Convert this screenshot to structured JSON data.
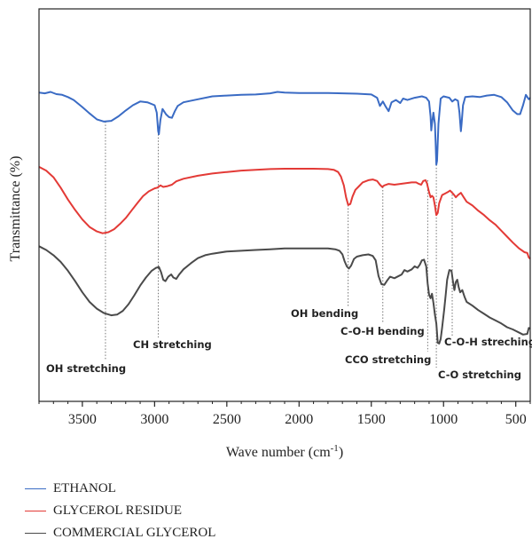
{
  "chart_data": {
    "type": "line",
    "ylabel": "Transmittance (%)",
    "xlabel_main": "Wave number (cm",
    "xlabel_sup": "-1",
    "xlabel_end": ")",
    "xlim": [
      3800,
      400
    ],
    "x_reversed": true,
    "ylim": [
      0,
      100
    ],
    "yticks_shown": false,
    "xticks": [
      {
        "value": 3500,
        "label": "3500"
      },
      {
        "value": 3000,
        "label": "3000"
      },
      {
        "value": 2500,
        "label": "2500"
      },
      {
        "value": 2000,
        "label": "2000"
      },
      {
        "value": 1500,
        "label": "1500"
      },
      {
        "value": 1000,
        "label": "1000"
      },
      {
        "value": 500,
        "label": "500"
      }
    ],
    "legend_placement": "bottom-left",
    "series": [
      {
        "name": "ETHANOL",
        "color": "#3a6bc4",
        "points": [
          [
            3800,
            78.4
          ],
          [
            3760,
            78.2
          ],
          [
            3720,
            78.6
          ],
          [
            3680,
            78.0
          ],
          [
            3640,
            77.8
          ],
          [
            3600,
            77.2
          ],
          [
            3560,
            76.4
          ],
          [
            3500,
            74.5
          ],
          [
            3450,
            72.8
          ],
          [
            3400,
            71.2
          ],
          [
            3350,
            70.6
          ],
          [
            3300,
            70.8
          ],
          [
            3250,
            72.0
          ],
          [
            3200,
            73.6
          ],
          [
            3150,
            75.0
          ],
          [
            3100,
            76.0
          ],
          [
            3050,
            75.8
          ],
          [
            3000,
            75.0
          ],
          [
            2985,
            73.0
          ],
          [
            2975,
            68.0
          ],
          [
            2970,
            67.2
          ],
          [
            2960,
            71.0
          ],
          [
            2945,
            74.0
          ],
          [
            2920,
            72.5
          ],
          [
            2900,
            71.8
          ],
          [
            2880,
            71.6
          ],
          [
            2860,
            73.4
          ],
          [
            2840,
            74.8
          ],
          [
            2800,
            75.8
          ],
          [
            2700,
            76.6
          ],
          [
            2600,
            77.4
          ],
          [
            2500,
            77.6
          ],
          [
            2400,
            77.8
          ],
          [
            2300,
            77.9
          ],
          [
            2200,
            78.2
          ],
          [
            2150,
            78.6
          ],
          [
            2100,
            78.4
          ],
          [
            2000,
            78.3
          ],
          [
            1900,
            78.3
          ],
          [
            1800,
            78.3
          ],
          [
            1700,
            78.2
          ],
          [
            1600,
            78.1
          ],
          [
            1500,
            77.9
          ],
          [
            1460,
            77.0
          ],
          [
            1440,
            74.8
          ],
          [
            1420,
            76.0
          ],
          [
            1400,
            74.6
          ],
          [
            1380,
            73.4
          ],
          [
            1360,
            75.8
          ],
          [
            1330,
            76.4
          ],
          [
            1300,
            75.6
          ],
          [
            1280,
            76.8
          ],
          [
            1250,
            76.4
          ],
          [
            1200,
            77.0
          ],
          [
            1150,
            77.4
          ],
          [
            1120,
            77.0
          ],
          [
            1100,
            76.0
          ],
          [
            1090,
            72.0
          ],
          [
            1085,
            68.2
          ],
          [
            1080,
            70.0
          ],
          [
            1070,
            73.0
          ],
          [
            1060,
            70.0
          ],
          [
            1055,
            65.0
          ],
          [
            1050,
            59.0
          ],
          [
            1045,
            60.0
          ],
          [
            1035,
            70.0
          ],
          [
            1020,
            76.8
          ],
          [
            1000,
            77.4
          ],
          [
            960,
            77.0
          ],
          [
            940,
            76.0
          ],
          [
            920,
            76.6
          ],
          [
            900,
            76.2
          ],
          [
            890,
            73.0
          ],
          [
            880,
            68.0
          ],
          [
            875,
            70.0
          ],
          [
            865,
            75.0
          ],
          [
            850,
            77.2
          ],
          [
            800,
            77.4
          ],
          [
            750,
            77.2
          ],
          [
            700,
            77.6
          ],
          [
            650,
            77.8
          ],
          [
            600,
            77.2
          ],
          [
            560,
            75.8
          ],
          [
            520,
            73.6
          ],
          [
            490,
            72.6
          ],
          [
            470,
            72.6
          ],
          [
            450,
            75.0
          ],
          [
            430,
            77.8
          ],
          [
            410,
            76.6
          ],
          [
            400,
            77.0
          ]
        ]
      },
      {
        "name": "GLYCEROL RESIDUE",
        "color": "#e33a36",
        "points": [
          [
            3800,
            58.4
          ],
          [
            3750,
            57.4
          ],
          [
            3700,
            55.6
          ],
          [
            3650,
            52.8
          ],
          [
            3600,
            49.6
          ],
          [
            3550,
            46.8
          ],
          [
            3500,
            44.2
          ],
          [
            3450,
            42.2
          ],
          [
            3400,
            41.0
          ],
          [
            3360,
            40.5
          ],
          [
            3320,
            40.8
          ],
          [
            3280,
            41.6
          ],
          [
            3240,
            43.0
          ],
          [
            3200,
            44.6
          ],
          [
            3160,
            46.6
          ],
          [
            3120,
            48.6
          ],
          [
            3080,
            50.5
          ],
          [
            3040,
            51.8
          ],
          [
            3000,
            52.6
          ],
          [
            2980,
            52.8
          ],
          [
            2960,
            53.4
          ],
          [
            2940,
            53.0
          ],
          [
            2910,
            53.2
          ],
          [
            2880,
            53.6
          ],
          [
            2850,
            54.5
          ],
          [
            2800,
            55.2
          ],
          [
            2700,
            56.0
          ],
          [
            2600,
            56.6
          ],
          [
            2500,
            57.0
          ],
          [
            2400,
            57.4
          ],
          [
            2300,
            57.6
          ],
          [
            2200,
            57.8
          ],
          [
            2100,
            57.9
          ],
          [
            2000,
            57.9
          ],
          [
            1900,
            57.9
          ],
          [
            1800,
            57.8
          ],
          [
            1760,
            57.6
          ],
          [
            1730,
            57.0
          ],
          [
            1710,
            55.8
          ],
          [
            1690,
            53.4
          ],
          [
            1675,
            50.2
          ],
          [
            1660,
            48.1
          ],
          [
            1645,
            48.4
          ],
          [
            1630,
            50.4
          ],
          [
            1610,
            52.2
          ],
          [
            1590,
            53.0
          ],
          [
            1560,
            54.2
          ],
          [
            1520,
            54.8
          ],
          [
            1490,
            55.0
          ],
          [
            1460,
            54.6
          ],
          [
            1440,
            53.6
          ],
          [
            1425,
            53.0
          ],
          [
            1410,
            53.4
          ],
          [
            1380,
            53.8
          ],
          [
            1340,
            53.6
          ],
          [
            1300,
            53.8
          ],
          [
            1260,
            54.0
          ],
          [
            1220,
            54.2
          ],
          [
            1190,
            54.2
          ],
          [
            1170,
            53.8
          ],
          [
            1155,
            53.6
          ],
          [
            1140,
            54.6
          ],
          [
            1125,
            54.8
          ],
          [
            1115,
            54.0
          ],
          [
            1100,
            51.6
          ],
          [
            1090,
            50.2
          ],
          [
            1080,
            50.6
          ],
          [
            1070,
            50.2
          ],
          [
            1060,
            48.0
          ],
          [
            1050,
            45.4
          ],
          [
            1040,
            46.0
          ],
          [
            1030,
            48.6
          ],
          [
            1010,
            50.8
          ],
          [
            990,
            51.2
          ],
          [
            970,
            51.6
          ],
          [
            955,
            52.0
          ],
          [
            945,
            51.6
          ],
          [
            930,
            51.0
          ],
          [
            915,
            50.2
          ],
          [
            900,
            50.8
          ],
          [
            880,
            51.4
          ],
          [
            860,
            50.2
          ],
          [
            840,
            49.0
          ],
          [
            800,
            48.0
          ],
          [
            760,
            46.6
          ],
          [
            720,
            45.4
          ],
          [
            680,
            44.0
          ],
          [
            640,
            42.8
          ],
          [
            600,
            41.2
          ],
          [
            560,
            39.6
          ],
          [
            520,
            38.0
          ],
          [
            480,
            36.5
          ],
          [
            440,
            35.4
          ],
          [
            420,
            35.2
          ],
          [
            410,
            34.0
          ],
          [
            400,
            33.6
          ]
        ]
      },
      {
        "name": "COMMERCIAL GLYCEROL",
        "color": "#4a4a4a",
        "points": [
          [
            3800,
            37.0
          ],
          [
            3750,
            36.0
          ],
          [
            3700,
            34.6
          ],
          [
            3650,
            32.8
          ],
          [
            3600,
            30.4
          ],
          [
            3550,
            27.6
          ],
          [
            3500,
            24.6
          ],
          [
            3450,
            22.0
          ],
          [
            3400,
            20.2
          ],
          [
            3350,
            19.0
          ],
          [
            3300,
            18.4
          ],
          [
            3260,
            18.6
          ],
          [
            3220,
            19.6
          ],
          [
            3180,
            21.4
          ],
          [
            3140,
            23.8
          ],
          [
            3100,
            26.4
          ],
          [
            3060,
            28.6
          ],
          [
            3020,
            30.4
          ],
          [
            2990,
            31.2
          ],
          [
            2970,
            31.4
          ],
          [
            2955,
            30.0
          ],
          [
            2940,
            28.0
          ],
          [
            2925,
            27.6
          ],
          [
            2905,
            28.8
          ],
          [
            2885,
            29.4
          ],
          [
            2870,
            28.6
          ],
          [
            2850,
            28.2
          ],
          [
            2830,
            29.4
          ],
          [
            2800,
            30.8
          ],
          [
            2750,
            32.4
          ],
          [
            2700,
            33.8
          ],
          [
            2650,
            34.6
          ],
          [
            2600,
            35.0
          ],
          [
            2500,
            35.6
          ],
          [
            2400,
            35.8
          ],
          [
            2300,
            36.0
          ],
          [
            2200,
            36.2
          ],
          [
            2100,
            36.4
          ],
          [
            2000,
            36.4
          ],
          [
            1900,
            36.4
          ],
          [
            1800,
            36.4
          ],
          [
            1750,
            36.2
          ],
          [
            1720,
            35.8
          ],
          [
            1700,
            34.8
          ],
          [
            1685,
            33.0
          ],
          [
            1670,
            31.6
          ],
          [
            1655,
            31.0
          ],
          [
            1640,
            31.8
          ],
          [
            1620,
            33.6
          ],
          [
            1600,
            34.2
          ],
          [
            1560,
            34.6
          ],
          [
            1520,
            34.8
          ],
          [
            1490,
            34.4
          ],
          [
            1470,
            33.2
          ],
          [
            1450,
            29.0
          ],
          [
            1430,
            26.8
          ],
          [
            1410,
            26.6
          ],
          [
            1390,
            27.8
          ],
          [
            1370,
            28.8
          ],
          [
            1340,
            28.4
          ],
          [
            1310,
            29.0
          ],
          [
            1290,
            29.4
          ],
          [
            1270,
            30.6
          ],
          [
            1250,
            30.2
          ],
          [
            1220,
            30.8
          ],
          [
            1200,
            31.6
          ],
          [
            1180,
            31.2
          ],
          [
            1165,
            32.0
          ],
          [
            1150,
            33.2
          ],
          [
            1135,
            33.4
          ],
          [
            1120,
            31.6
          ],
          [
            1110,
            27.0
          ],
          [
            1100,
            24.0
          ],
          [
            1090,
            23.0
          ],
          [
            1080,
            24.2
          ],
          [
            1070,
            21.8
          ],
          [
            1060,
            18.6
          ],
          [
            1050,
            16.2
          ],
          [
            1040,
            11.0
          ],
          [
            1030,
            10.8
          ],
          [
            1020,
            12.0
          ],
          [
            1010,
            15.0
          ],
          [
            995,
            20.0
          ],
          [
            985,
            24.0
          ],
          [
            975,
            28.0
          ],
          [
            960,
            30.6
          ],
          [
            945,
            30.4
          ],
          [
            935,
            27.6
          ],
          [
            925,
            25.2
          ],
          [
            915,
            27.4
          ],
          [
            905,
            28.0
          ],
          [
            895,
            26.0
          ],
          [
            885,
            24.6
          ],
          [
            870,
            25.2
          ],
          [
            855,
            23.4
          ],
          [
            840,
            22.0
          ],
          [
            800,
            21.0
          ],
          [
            760,
            19.8
          ],
          [
            720,
            18.8
          ],
          [
            680,
            17.8
          ],
          [
            640,
            17.0
          ],
          [
            600,
            16.2
          ],
          [
            560,
            15.2
          ],
          [
            520,
            14.6
          ],
          [
            480,
            13.8
          ],
          [
            450,
            13.2
          ],
          [
            420,
            13.4
          ],
          [
            410,
            15.0
          ],
          [
            400,
            14.8
          ]
        ]
      }
    ],
    "guides": [
      {
        "x": 3340,
        "y_top": 70.6
      },
      {
        "x": 2975,
        "y_top": 68.0
      },
      {
        "x": 1660,
        "y_top": 48.1
      },
      {
        "x": 1420,
        "y_top": 53.0
      },
      {
        "x": 1110,
        "y_top": 54.8
      },
      {
        "x": 1050,
        "y_top": 59.0
      },
      {
        "x": 940,
        "y_top": 51.8
      }
    ],
    "annotations": [
      {
        "text": "OH stretching",
        "x": 3340
      },
      {
        "text": "CH stretching",
        "x": 2975
      },
      {
        "text": "OH bending",
        "x": 1660
      },
      {
        "text": "C-O-H bending",
        "x": 1420
      },
      {
        "text": "CCO stretching",
        "x": 1110
      },
      {
        "text": "C-O stretching",
        "x": 1050
      },
      {
        "text": "C-O-H streching",
        "x": 940
      }
    ]
  }
}
